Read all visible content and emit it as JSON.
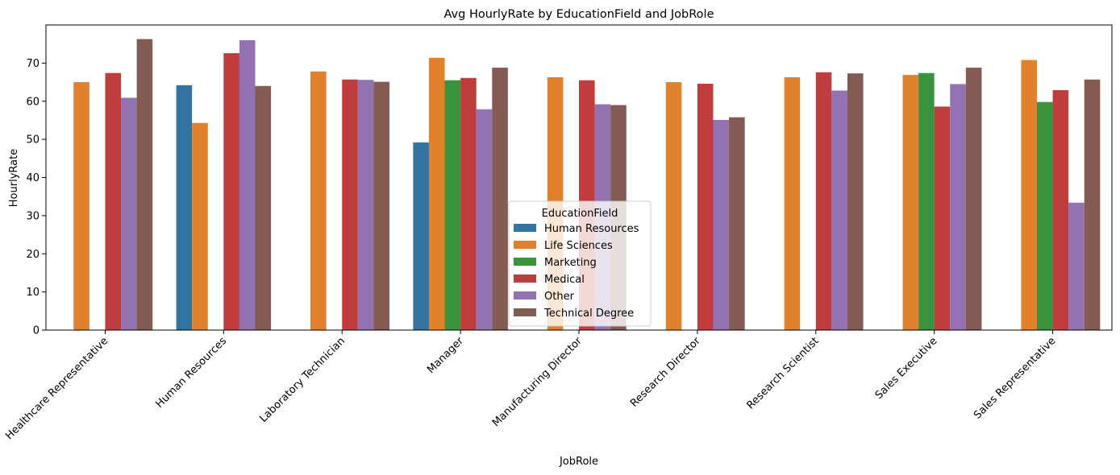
{
  "chart_data": {
    "type": "bar",
    "title": "Avg HourlyRate by EducationField and JobRole",
    "xlabel": "JobRole",
    "ylabel": "HourlyRate",
    "ylim": [
      0,
      80
    ],
    "yticks": [
      0,
      10,
      20,
      30,
      40,
      50,
      60,
      70
    ],
    "grid": false,
    "legend": {
      "title": "EducationField",
      "placement": "lower-center"
    },
    "categories": [
      "Healthcare Representative",
      "Human Resources",
      "Laboratory Technician",
      "Manager",
      "Manufacturing Director",
      "Research Director",
      "Research Scientist",
      "Sales Executive",
      "Sales Representative"
    ],
    "series": [
      {
        "name": "Human Resources",
        "color": "#3274a1",
        "values": [
          null,
          64.2,
          null,
          49.2,
          null,
          null,
          null,
          null,
          null
        ]
      },
      {
        "name": "Life Sciences",
        "color": "#e1812c",
        "values": [
          65.0,
          54.3,
          67.8,
          71.4,
          66.3,
          65.0,
          66.3,
          66.9,
          70.8
        ]
      },
      {
        "name": "Marketing",
        "color": "#3a923a",
        "values": [
          null,
          null,
          null,
          65.5,
          null,
          null,
          null,
          67.4,
          59.8
        ]
      },
      {
        "name": "Medical",
        "color": "#c03d3e",
        "values": [
          67.4,
          72.6,
          65.7,
          66.1,
          65.5,
          64.6,
          67.6,
          58.6,
          62.9
        ]
      },
      {
        "name": "Other",
        "color": "#9372b2",
        "values": [
          60.9,
          76.0,
          65.6,
          57.9,
          59.2,
          55.1,
          62.8,
          64.5,
          33.4
        ]
      },
      {
        "name": "Technical Degree",
        "color": "#845b53",
        "values": [
          76.3,
          64.0,
          65.1,
          68.8,
          59.0,
          55.8,
          67.3,
          68.8,
          65.7
        ]
      }
    ]
  }
}
